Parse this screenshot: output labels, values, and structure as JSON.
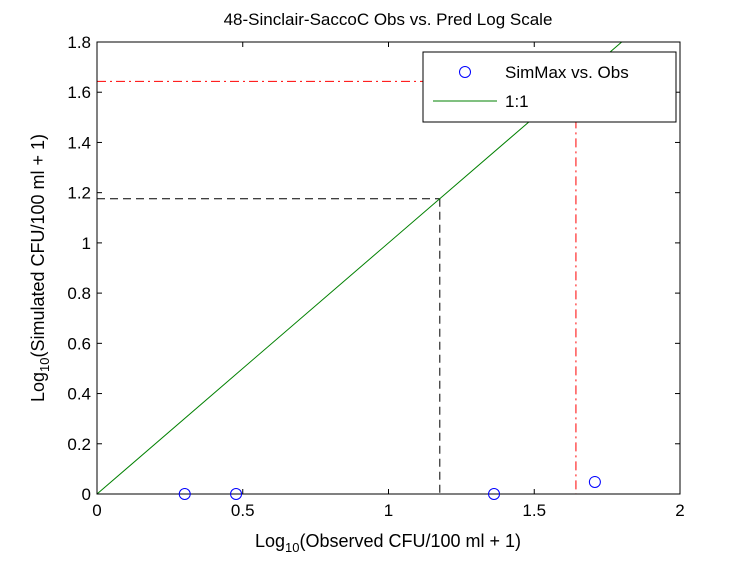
{
  "chart_data": {
    "type": "scatter",
    "title": "48-Sinclair-SaccoC Obs vs. Pred Log Scale",
    "xlabel": {
      "prefix": "Log",
      "sub": "10",
      "rest": "(Observed CFU/100 ml + 1)"
    },
    "ylabel": {
      "prefix": "Log",
      "sub": "10",
      "rest": "(Simulated CFU/100 ml + 1)"
    },
    "xlim": [
      0,
      2
    ],
    "ylim": [
      0,
      1.8
    ],
    "xticks": [
      0,
      0.5,
      1,
      1.5,
      2
    ],
    "xtick_labels": [
      "0",
      "0.5",
      "1",
      "1.5",
      "2"
    ],
    "yticks": [
      0,
      0.2,
      0.4,
      0.6,
      0.8,
      1,
      1.2,
      1.4,
      1.6,
      1.8
    ],
    "ytick_labels": [
      "0",
      "0.2",
      "0.4",
      "0.6",
      "0.8",
      "1",
      "1.2",
      "1.4",
      "1.6",
      "1.8"
    ],
    "legend_position": "top-right",
    "series": [
      {
        "name": "SimMax vs. Obs",
        "kind": "scatter",
        "marker": "circle",
        "color": "#0000ff",
        "x": [
          0.301,
          0.477,
          1.362,
          1.708
        ],
        "y": [
          0,
          0,
          0,
          0.048
        ]
      },
      {
        "name": "1:1",
        "kind": "line",
        "color": "#008000",
        "x": [
          0,
          1.8
        ],
        "y": [
          0,
          1.8
        ]
      }
    ],
    "reference_lines": [
      {
        "color": "#000000",
        "dash": "dashed",
        "x": 1.176,
        "y": 1.176
      },
      {
        "color": "#ff0000",
        "dash": "dashdot",
        "x": 1.643,
        "y": 1.643
      }
    ]
  }
}
